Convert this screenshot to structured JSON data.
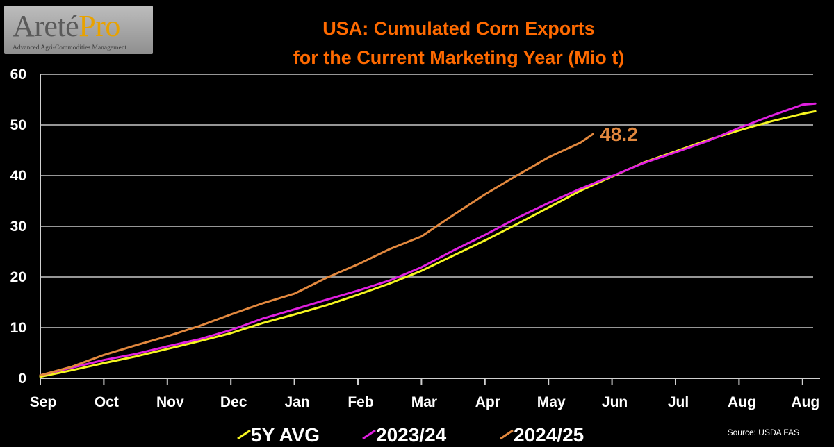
{
  "logo": {
    "brand_part1": "Areté",
    "brand_part2": "Pro",
    "tagline": "Advanced Agri-Commodities Management"
  },
  "source": "Source:  USDA FAS",
  "chart_data": {
    "type": "line",
    "title": [
      "USA: Cumulated Corn Exports",
      "for the Current Marketing Year (Mio t)"
    ],
    "xlabel": "",
    "ylabel": "",
    "ylim": [
      0,
      60
    ],
    "yticks": [
      0,
      10,
      20,
      30,
      40,
      50,
      60
    ],
    "grid": true,
    "legend_position": "bottom",
    "x_ticks": [
      "Sep",
      "Oct",
      "Nov",
      "Dec",
      "Jan",
      "Feb",
      "Mar",
      "Apr",
      "May",
      "Jun",
      "Jul",
      "Aug",
      "Aug"
    ],
    "x_range": [
      0,
      12.2
    ],
    "annotations": [
      {
        "text": "48.2",
        "series": "2024/25",
        "color": "#e2883e"
      }
    ],
    "series": [
      {
        "name": "5Y AVG",
        "color": "#f5f520",
        "x": [
          0,
          0.5,
          1,
          1.5,
          2,
          2.5,
          3,
          3.5,
          4,
          4.5,
          5,
          5.5,
          6,
          6.5,
          7,
          7.5,
          8,
          8.5,
          9,
          9.5,
          10,
          10.5,
          11,
          11.5,
          12,
          12.2
        ],
        "values": [
          0.3,
          1.6,
          3.0,
          4.3,
          5.8,
          7.3,
          8.9,
          10.9,
          12.6,
          14.4,
          16.5,
          18.7,
          21.2,
          24.2,
          27.2,
          30.4,
          33.7,
          37.0,
          39.8,
          42.6,
          44.8,
          47.0,
          48.9,
          50.7,
          52.2,
          52.7
        ]
      },
      {
        "name": "2023/24",
        "color": "#e020e0",
        "x": [
          0,
          0.5,
          1,
          1.5,
          2,
          2.5,
          3,
          3.5,
          4,
          4.5,
          5,
          5.5,
          6,
          6.5,
          7,
          7.5,
          8,
          8.5,
          9,
          9.5,
          10,
          10.5,
          11,
          11.5,
          12,
          12.2
        ],
        "values": [
          0.6,
          2.1,
          3.6,
          4.8,
          6.3,
          7.7,
          9.5,
          11.8,
          13.6,
          15.5,
          17.3,
          19.3,
          21.9,
          25.2,
          28.3,
          31.6,
          34.6,
          37.4,
          39.9,
          42.5,
          44.6,
          46.8,
          49.4,
          51.8,
          54.0,
          54.2
        ]
      },
      {
        "name": "2024/25",
        "color": "#e2883e",
        "x": [
          0,
          0.5,
          1,
          1.5,
          2,
          2.5,
          3,
          3.5,
          4,
          4.5,
          5,
          5.5,
          6,
          6.5,
          7,
          7.5,
          8,
          8.5,
          8.7
        ],
        "values": [
          0.6,
          2.3,
          4.6,
          6.5,
          8.3,
          10.3,
          12.6,
          14.8,
          16.7,
          19.8,
          22.5,
          25.5,
          28.0,
          32.2,
          36.3,
          40.0,
          43.6,
          46.5,
          48.2
        ]
      }
    ]
  }
}
